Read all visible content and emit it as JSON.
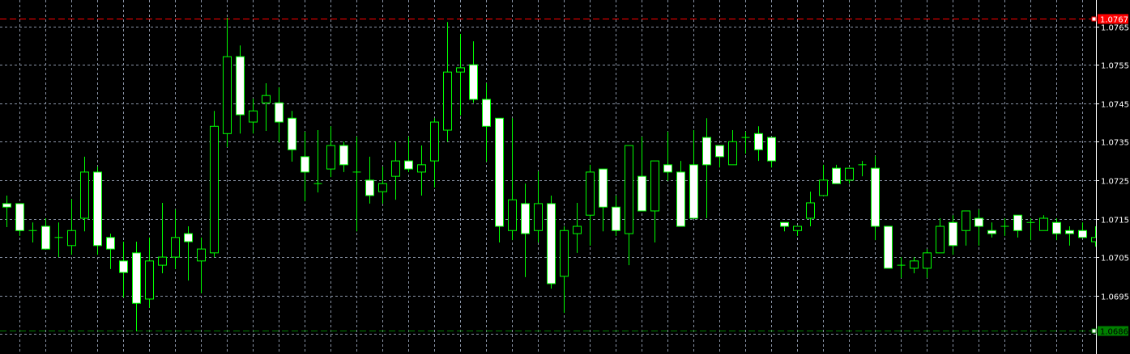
{
  "chart_data": {
    "type": "candlestick",
    "title": "",
    "xlabel": "",
    "ylabel": "",
    "ylim": [
      1.068,
      1.0772
    ],
    "grid": true,
    "y_ticks": [
      "1.0765",
      "1.0755",
      "1.0745",
      "1.0735",
      "1.0725",
      "1.0715",
      "1.0705",
      "1.0695"
    ],
    "grid_levels": [
      1.0765,
      1.0755,
      1.0745,
      1.0735,
      1.0725,
      1.0715,
      1.0705,
      1.0695,
      1.0685
    ],
    "price_lines": [
      {
        "label": "1.0767",
        "value": 1.0767,
        "color": "#ff0000"
      },
      {
        "label": "1.0686",
        "value": 1.0686,
        "color": "#008000"
      }
    ],
    "colors": {
      "background": "#000000",
      "bull_body": "#000000",
      "bear_body": "#ffffff",
      "outline": "#00ff00",
      "grid": "#8a94a6",
      "axis": "#ffffff"
    },
    "ohlc_fields": [
      "open",
      "high",
      "low",
      "close"
    ],
    "candles": [
      [
        1.07189,
        1.0721,
        1.07128,
        1.0718
      ],
      [
        1.07189,
        1.07189,
        1.07105,
        1.07119
      ],
      [
        1.07119,
        1.0714,
        1.07088,
        1.07119
      ],
      [
        1.0713,
        1.07151,
        1.07069,
        1.07071
      ],
      [
        1.07101,
        1.0714,
        1.0705,
        1.07101
      ],
      [
        1.0708,
        1.07201,
        1.07056,
        1.07119
      ],
      [
        1.07151,
        1.07311,
        1.07117,
        1.07271
      ],
      [
        1.07271,
        1.07285,
        1.07056,
        1.0708
      ],
      [
        1.07101,
        1.07111,
        1.07019,
        1.07071
      ],
      [
        1.0704,
        1.0709,
        1.06945,
        1.0701
      ],
      [
        1.07061,
        1.0709,
        1.06857,
        1.0693
      ],
      [
        1.06941,
        1.07101,
        1.06918,
        1.0704
      ],
      [
        1.07029,
        1.07191,
        1.07008,
        1.0705
      ],
      [
        1.0705,
        1.07174,
        1.07019,
        1.07101
      ],
      [
        1.07111,
        1.0713,
        1.06989,
        1.0709
      ],
      [
        1.0704,
        1.07101,
        1.06956,
        1.07071
      ],
      [
        1.07061,
        1.0743,
        1.0705,
        1.0739
      ],
      [
        1.07371,
        1.07672,
        1.07336,
        1.07571
      ],
      [
        1.07571,
        1.076,
        1.07371,
        1.0742
      ],
      [
        1.07401,
        1.07462,
        1.07371,
        1.0743
      ],
      [
        1.07451,
        1.07502,
        1.07378,
        1.0747
      ],
      [
        1.07451,
        1.07491,
        1.07348,
        1.07401
      ],
      [
        1.07411,
        1.0743,
        1.07298,
        1.07329
      ],
      [
        1.07311,
        1.07376,
        1.07195,
        1.07271
      ],
      [
        1.07241,
        1.0738,
        1.07218,
        1.07241
      ],
      [
        1.07279,
        1.0739,
        1.07258,
        1.0734
      ],
      [
        1.0734,
        1.0735,
        1.07271,
        1.0729
      ],
      [
        1.07271,
        1.07363,
        1.07117,
        1.07271
      ],
      [
        1.0725,
        1.07311,
        1.07189,
        1.0721
      ],
      [
        1.0722,
        1.07285,
        1.07189,
        1.07241
      ],
      [
        1.0726,
        1.0735,
        1.07199,
        1.073
      ],
      [
        1.073,
        1.07363,
        1.07271,
        1.07279
      ],
      [
        1.07271,
        1.0734,
        1.0721,
        1.0729
      ],
      [
        1.073,
        1.07411,
        1.07231,
        1.07401
      ],
      [
        1.0738,
        1.07661,
        1.0735,
        1.07531
      ],
      [
        1.07531,
        1.0763,
        1.07418,
        1.07542
      ],
      [
        1.0755,
        1.07611,
        1.07451,
        1.0746
      ],
      [
        1.0746,
        1.07502,
        1.07298,
        1.0739
      ],
      [
        1.07411,
        1.07411,
        1.07088,
        1.0713
      ],
      [
        1.07119,
        1.07411,
        1.07094,
        1.07199
      ],
      [
        1.07189,
        1.07241,
        1.06998,
        1.07111
      ],
      [
        1.07119,
        1.07273,
        1.07088,
        1.07189
      ],
      [
        1.07189,
        1.0721,
        1.06968,
        1.06981
      ],
      [
        1.07,
        1.0713,
        1.06905,
        1.07119
      ],
      [
        1.07111,
        1.07191,
        1.07061,
        1.0713
      ],
      [
        1.07159,
        1.0729,
        1.0708,
        1.07271
      ],
      [
        1.07279,
        1.07279,
        1.07117,
        1.0718
      ],
      [
        1.0718,
        1.0721,
        1.07105,
        1.07119
      ],
      [
        1.07111,
        1.0734,
        1.07029,
        1.0734
      ],
      [
        1.0726,
        1.07363,
        1.0717,
        1.0717
      ],
      [
        1.0717,
        1.073,
        1.07088,
        1.073
      ],
      [
        1.0729,
        1.07376,
        1.07248,
        1.07271
      ],
      [
        1.07271,
        1.073,
        1.0713,
        1.0713
      ],
      [
        1.0729,
        1.0738,
        1.07151,
        1.07151
      ],
      [
        1.07361,
        1.07411,
        1.07151,
        1.0729
      ],
      [
        1.0734,
        1.0734,
        1.07283,
        1.07311
      ],
      [
        1.0729,
        1.0738,
        1.0729,
        1.0735
      ],
      [
        1.07361,
        1.07376,
        1.07319,
        1.07361
      ],
      [
        1.07371,
        1.0739,
        1.073,
        1.07329
      ],
      [
        1.07361,
        1.07361,
        1.07283,
        1.073
      ],
      [
        1.0714,
        1.0714,
        1.07117,
        1.0713
      ],
      [
        1.07119,
        1.0713,
        1.07105,
        1.0713
      ],
      [
        1.07151,
        1.0722,
        1.0713,
        1.07191
      ],
      [
        1.0721,
        1.0729,
        1.0721,
        1.0725
      ],
      [
        1.07281,
        1.0729,
        1.07241,
        1.07241
      ],
      [
        1.0725,
        1.07281,
        1.07241,
        1.07281
      ],
      [
        1.0729,
        1.073,
        1.0726,
        1.0729
      ],
      [
        1.07281,
        1.07313,
        1.07094,
        1.0713
      ],
      [
        1.0713,
        1.0713,
        1.07021,
        1.07021
      ],
      [
        1.07029,
        1.0705,
        1.06996,
        1.07029
      ],
      [
        1.07021,
        1.0705,
        1.07008,
        1.0704
      ],
      [
        1.07021,
        1.07071,
        1.06996,
        1.07061
      ],
      [
        1.07061,
        1.07151,
        1.07061,
        1.0713
      ],
      [
        1.0714,
        1.07159,
        1.07056,
        1.0708
      ],
      [
        1.07119,
        1.0717,
        1.0708,
        1.0717
      ],
      [
        1.07151,
        1.07174,
        1.0708,
        1.0713
      ],
      [
        1.07119,
        1.0714,
        1.07101,
        1.07111
      ],
      [
        1.0713,
        1.07151,
        1.07105,
        1.0713
      ],
      [
        1.07159,
        1.07159,
        1.07101,
        1.07119
      ],
      [
        1.0714,
        1.07151,
        1.07094,
        1.0714
      ],
      [
        1.07119,
        1.07159,
        1.07119,
        1.07151
      ],
      [
        1.0714,
        1.07151,
        1.07094,
        1.07111
      ],
      [
        1.07119,
        1.0713,
        1.0708,
        1.07111
      ],
      [
        1.07119,
        1.0714,
        1.07101,
        1.07101
      ],
      [
        1.0709,
        1.0713,
        1.07077,
        1.07101
      ]
    ]
  }
}
